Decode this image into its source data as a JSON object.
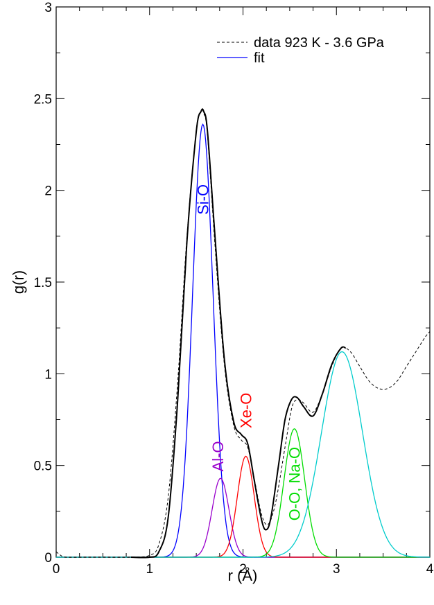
{
  "chart_data": {
    "type": "line",
    "xlabel": "r (Å)",
    "ylabel": "g(r)",
    "xlim": [
      0,
      4
    ],
    "ylim": [
      0,
      3
    ],
    "xticks": [
      "0",
      "1",
      "2",
      "3",
      "4"
    ],
    "yticks": [
      "0",
      "0.5",
      "1",
      "1.5",
      "2",
      "2.5",
      "3"
    ],
    "grid": false,
    "legend_position": "top-right",
    "legend": [
      {
        "label": "data 923 K - 3.6 GPa",
        "color": "#000000",
        "dash": "dashed"
      },
      {
        "label": "fit",
        "color": "#0000ff",
        "dash": "solid"
      }
    ],
    "data_curve": {
      "color": "#000000",
      "x": [
        0,
        0.05,
        0.1,
        0.3,
        0.5,
        0.8,
        1.0,
        1.1,
        1.2,
        1.3,
        1.4,
        1.5,
        1.55,
        1.58,
        1.62,
        1.7,
        1.8,
        1.9,
        1.98,
        2.05,
        2.12,
        2.2,
        2.27,
        2.35,
        2.45,
        2.52,
        2.58,
        2.65,
        2.75,
        2.85,
        2.95,
        3.05,
        3.15,
        3.25,
        3.35,
        3.45,
        3.55,
        3.65,
        3.75,
        3.85,
        3.95,
        4.0
      ],
      "y": [
        0.03,
        0.01,
        0.0,
        0.0,
        0.0,
        0.0,
        0.01,
        0.07,
        0.33,
        0.95,
        1.75,
        2.33,
        2.43,
        2.42,
        2.3,
        1.7,
        1.05,
        0.72,
        0.64,
        0.6,
        0.43,
        0.23,
        0.18,
        0.3,
        0.6,
        0.81,
        0.86,
        0.84,
        0.79,
        0.89,
        1.04,
        1.14,
        1.12,
        1.04,
        0.96,
        0.92,
        0.92,
        0.96,
        1.04,
        1.12,
        1.2,
        1.23
      ]
    },
    "fit_total": {
      "color": "#000000",
      "x": [
        0.8,
        1.0,
        1.1,
        1.2,
        1.3,
        1.4,
        1.5,
        1.55,
        1.58,
        1.62,
        1.7,
        1.8,
        1.9,
        1.98,
        2.05,
        2.12,
        2.2,
        2.25,
        2.3,
        2.38,
        2.45,
        2.52,
        2.58,
        2.65,
        2.75,
        2.85,
        2.95,
        3.05,
        3.1
      ],
      "y": [
        0.0,
        0.0,
        0.03,
        0.22,
        0.85,
        1.72,
        2.32,
        2.43,
        2.43,
        2.32,
        1.75,
        1.08,
        0.74,
        0.67,
        0.62,
        0.42,
        0.2,
        0.15,
        0.22,
        0.5,
        0.75,
        0.86,
        0.87,
        0.82,
        0.77,
        0.89,
        1.05,
        1.14,
        1.14
      ]
    },
    "components": [
      {
        "name": "Si-O",
        "color": "#0000ff",
        "center": 1.57,
        "amplitude": 2.36,
        "sigma": 0.11
      },
      {
        "name": "Al-O",
        "color": "#9900cc",
        "center": 1.76,
        "amplitude": 0.43,
        "sigma": 0.09
      },
      {
        "name": "Xe-O",
        "color": "#ff0000",
        "center": 2.03,
        "amplitude": 0.55,
        "sigma": 0.09
      },
      {
        "name": "O-O, Na-O",
        "color": "#00dd00",
        "center": 2.55,
        "amplitude": 0.7,
        "sigma": 0.11
      },
      {
        "name": "",
        "color": "#00cccc",
        "center": 3.06,
        "amplitude": 1.12,
        "sigma": 0.22
      }
    ],
    "annotations": [
      {
        "text": "Si-O",
        "color": "#0000ff",
        "x": 1.57,
        "y": 1.95
      },
      {
        "text": "Al-O",
        "color": "#9900cc",
        "x": 1.73,
        "y": 0.55
      },
      {
        "text": "Xe-O",
        "color": "#ff0000",
        "x": 2.03,
        "y": 0.8
      },
      {
        "text": "O-O, Na-O",
        "color": "#00dd00",
        "x": 2.55,
        "y": 0.4
      }
    ]
  }
}
